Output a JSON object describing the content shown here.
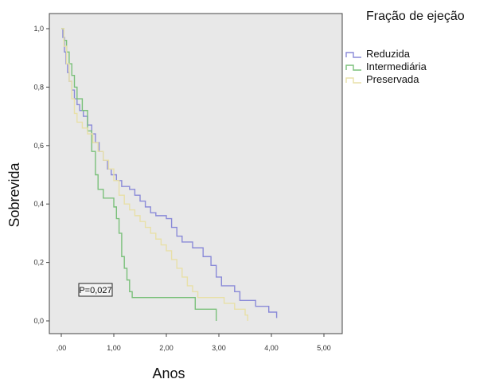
{
  "chart_data": {
    "type": "line",
    "subtype": "kaplan-meier-step",
    "xlabel": "Anos",
    "ylabel": "Sobrevida",
    "xlim": [
      0,
      5
    ],
    "ylim": [
      0,
      1
    ],
    "x_ticks": [
      ",00",
      "1,00",
      "2,00",
      "3,00",
      "4,00",
      "5,00"
    ],
    "y_ticks": [
      "0,0",
      "0,2",
      "0,4",
      "0,6",
      "0,8",
      "1,0"
    ],
    "grid": false,
    "plot_background": "#e8e8e8",
    "legend": {
      "title": "Fração de ejeção",
      "placement": "outside-top-right"
    },
    "annotation": "P=0,027",
    "series": [
      {
        "name": "Reduzida",
        "color": "#8a8ad8",
        "points": [
          [
            0,
            1.0
          ],
          [
            0.03,
            0.97
          ],
          [
            0.06,
            0.92
          ],
          [
            0.09,
            0.88
          ],
          [
            0.12,
            0.85
          ],
          [
            0.15,
            0.82
          ],
          [
            0.2,
            0.79
          ],
          [
            0.25,
            0.76
          ],
          [
            0.3,
            0.74
          ],
          [
            0.35,
            0.72
          ],
          [
            0.42,
            0.7
          ],
          [
            0.5,
            0.67
          ],
          [
            0.58,
            0.64
          ],
          [
            0.65,
            0.61
          ],
          [
            0.72,
            0.58
          ],
          [
            0.8,
            0.55
          ],
          [
            0.88,
            0.52
          ],
          [
            0.95,
            0.5
          ],
          [
            1.05,
            0.48
          ],
          [
            1.15,
            0.46
          ],
          [
            1.3,
            0.45
          ],
          [
            1.4,
            0.43
          ],
          [
            1.5,
            0.41
          ],
          [
            1.6,
            0.39
          ],
          [
            1.7,
            0.37
          ],
          [
            1.8,
            0.36
          ],
          [
            2.0,
            0.35
          ],
          [
            2.1,
            0.32
          ],
          [
            2.2,
            0.29
          ],
          [
            2.3,
            0.27
          ],
          [
            2.5,
            0.25
          ],
          [
            2.7,
            0.22
          ],
          [
            2.85,
            0.19
          ],
          [
            2.95,
            0.15
          ],
          [
            3.05,
            0.12
          ],
          [
            3.3,
            0.1
          ],
          [
            3.4,
            0.07
          ],
          [
            3.7,
            0.05
          ],
          [
            3.95,
            0.03
          ],
          [
            4.1,
            0.01
          ]
        ]
      },
      {
        "name": "Intermediária",
        "color": "#7ac07a",
        "points": [
          [
            0,
            1.0
          ],
          [
            0.05,
            0.96
          ],
          [
            0.1,
            0.92
          ],
          [
            0.15,
            0.88
          ],
          [
            0.2,
            0.84
          ],
          [
            0.25,
            0.8
          ],
          [
            0.3,
            0.76
          ],
          [
            0.4,
            0.72
          ],
          [
            0.5,
            0.65
          ],
          [
            0.58,
            0.58
          ],
          [
            0.65,
            0.5
          ],
          [
            0.7,
            0.45
          ],
          [
            0.8,
            0.42
          ],
          [
            0.9,
            0.42
          ],
          [
            1.0,
            0.39
          ],
          [
            1.05,
            0.35
          ],
          [
            1.1,
            0.3
          ],
          [
            1.15,
            0.22
          ],
          [
            1.2,
            0.18
          ],
          [
            1.25,
            0.14
          ],
          [
            1.3,
            0.1
          ],
          [
            1.35,
            0.08
          ],
          [
            2.0,
            0.08
          ],
          [
            2.5,
            0.08
          ],
          [
            2.55,
            0.04
          ],
          [
            2.95,
            0.04
          ],
          [
            2.95,
            0.0
          ]
        ]
      },
      {
        "name": "Preservada",
        "color": "#e8e0a8",
        "points": [
          [
            0,
            1.0
          ],
          [
            0.05,
            0.94
          ],
          [
            0.1,
            0.88
          ],
          [
            0.15,
            0.82
          ],
          [
            0.2,
            0.76
          ],
          [
            0.25,
            0.71
          ],
          [
            0.3,
            0.68
          ],
          [
            0.4,
            0.66
          ],
          [
            0.5,
            0.64
          ],
          [
            0.6,
            0.61
          ],
          [
            0.7,
            0.58
          ],
          [
            0.8,
            0.55
          ],
          [
            0.9,
            0.52
          ],
          [
            1.0,
            0.48
          ],
          [
            1.1,
            0.43
          ],
          [
            1.2,
            0.4
          ],
          [
            1.3,
            0.38
          ],
          [
            1.4,
            0.36
          ],
          [
            1.5,
            0.34
          ],
          [
            1.6,
            0.32
          ],
          [
            1.7,
            0.3
          ],
          [
            1.8,
            0.28
          ],
          [
            1.9,
            0.26
          ],
          [
            2.0,
            0.24
          ],
          [
            2.1,
            0.21
          ],
          [
            2.2,
            0.18
          ],
          [
            2.3,
            0.15
          ],
          [
            2.4,
            0.12
          ],
          [
            2.5,
            0.1
          ],
          [
            2.6,
            0.08
          ],
          [
            3.0,
            0.08
          ],
          [
            3.1,
            0.06
          ],
          [
            3.3,
            0.04
          ],
          [
            3.5,
            0.02
          ],
          [
            3.55,
            0.0
          ]
        ]
      }
    ]
  }
}
